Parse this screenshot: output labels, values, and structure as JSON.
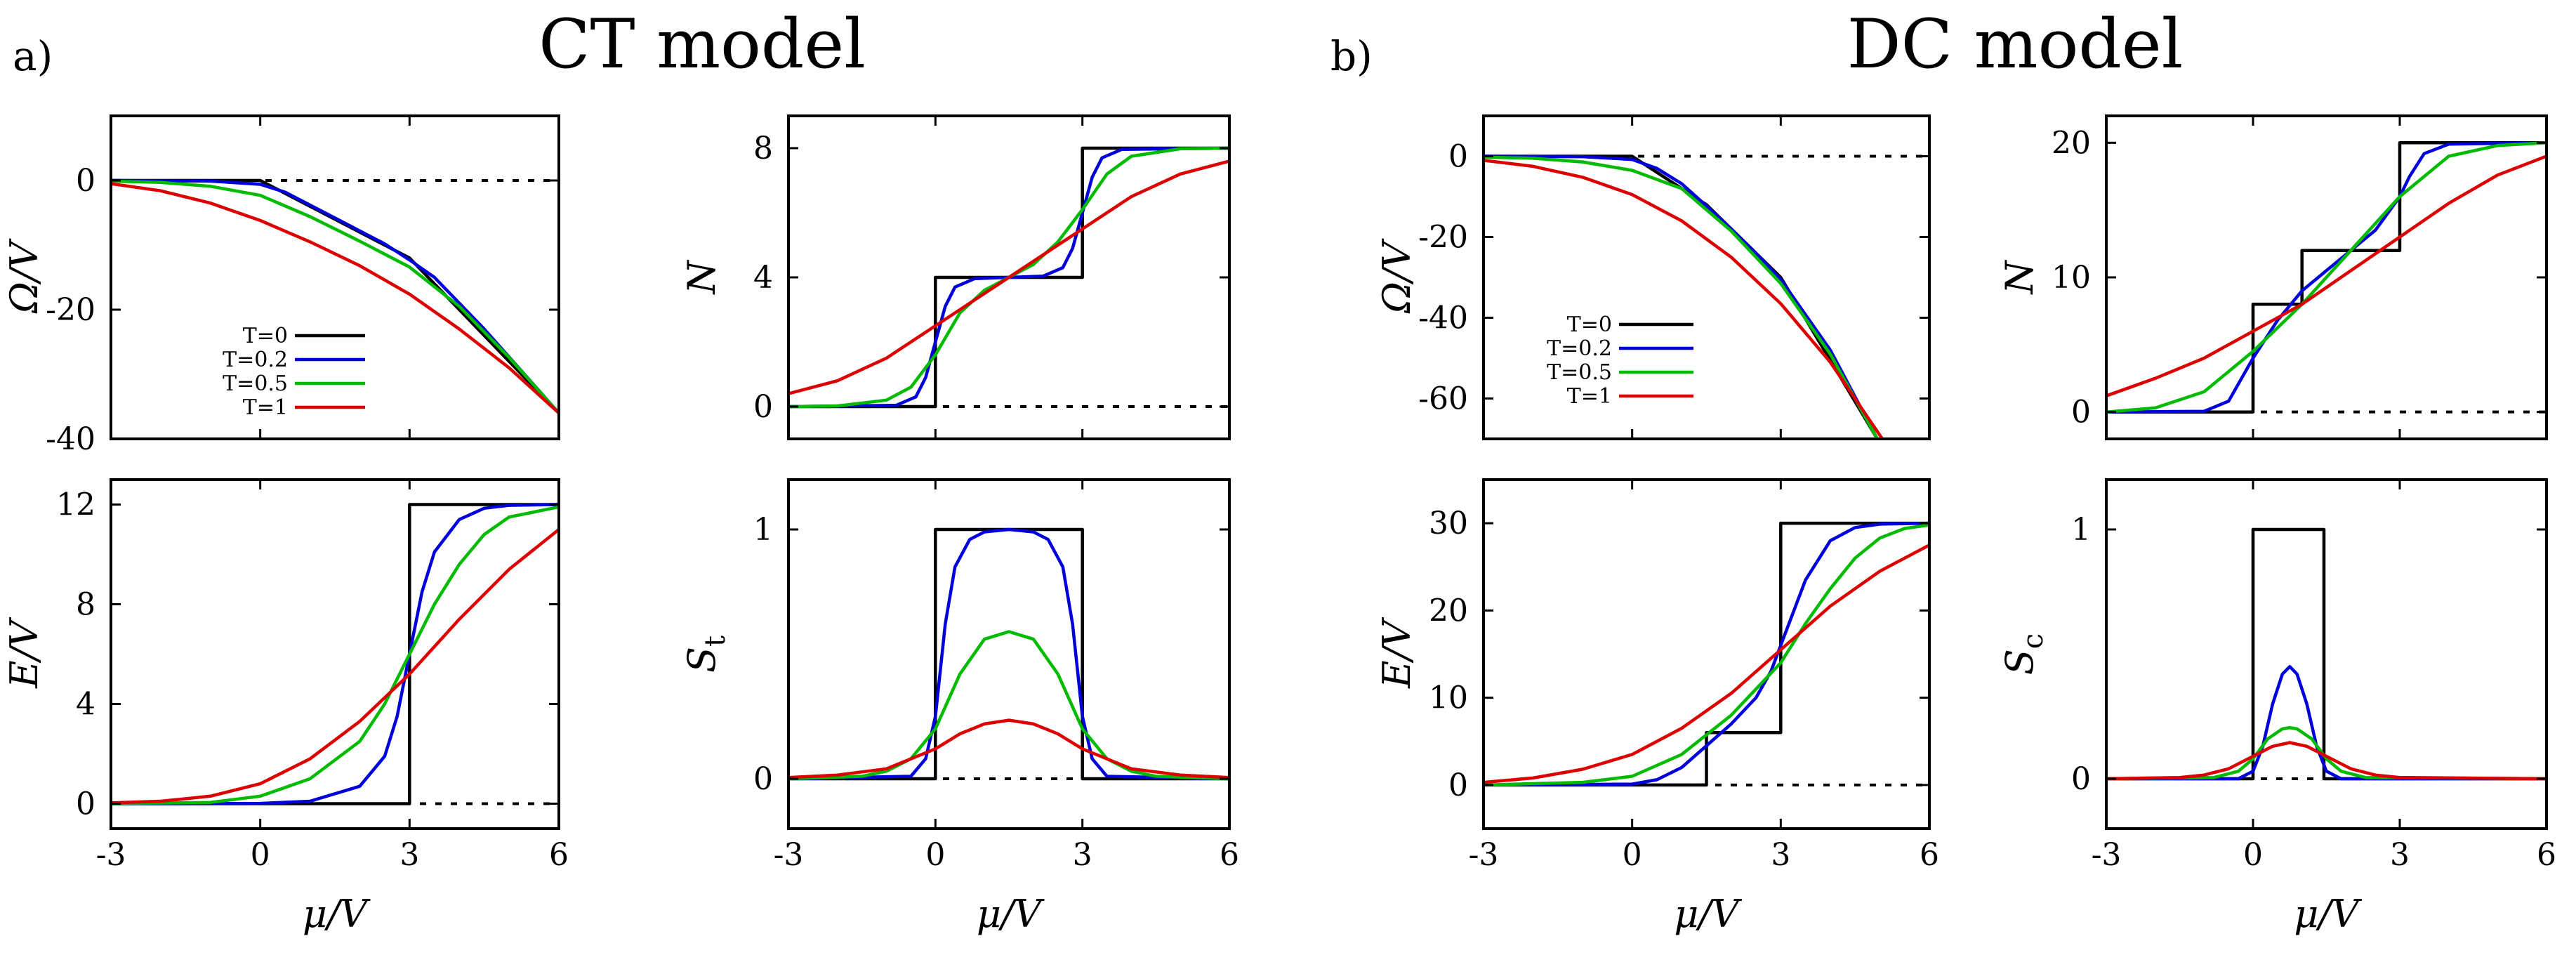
{
  "figure": {
    "left_letter": "a)",
    "right_letter": "b)",
    "left_title": "CT model",
    "right_title": "DC model"
  },
  "legend": {
    "entries": [
      {
        "label": "T=0",
        "color": "#000000"
      },
      {
        "label": "T=0.2",
        "color": "#0000dd"
      },
      {
        "label": "T=0.5",
        "color": "#00bb00"
      },
      {
        "label": "T=1",
        "color": "#dd0000"
      }
    ]
  },
  "chart_data": [
    {
      "id": "ct_omega",
      "type": "line",
      "model": "CT",
      "ylabel": "Ω/V",
      "xlabel": "",
      "xlim": [
        -3,
        6
      ],
      "ylim": [
        -40,
        10
      ],
      "yticks": [
        "0",
        "-20",
        "-40"
      ],
      "ytick_values": [
        0,
        -20,
        -40
      ],
      "xticks": [],
      "xtick_values": [
        -3,
        0,
        3,
        6
      ],
      "dashed_zero": true,
      "series": [
        {
          "name": "T=0",
          "x": [
            -3,
            0,
            3,
            6
          ],
          "y": [
            0,
            0,
            -12,
            -36
          ]
        },
        {
          "name": "T=0.2",
          "x": [
            -3,
            -1,
            0,
            0.5,
            1.5,
            2.5,
            3,
            3.5,
            4.5,
            6
          ],
          "y": [
            0,
            -0.1,
            -0.6,
            -1.8,
            -5.8,
            -9.8,
            -12.3,
            -15,
            -23,
            -36
          ]
        },
        {
          "name": "T=0.5",
          "x": [
            -3,
            -2,
            -1,
            0,
            1,
            2,
            3,
            4,
            5,
            6
          ],
          "y": [
            -0.1,
            -0.3,
            -0.9,
            -2.3,
            -5.6,
            -9.4,
            -13.4,
            -19.5,
            -27.4,
            -36
          ]
        },
        {
          "name": "T=1",
          "x": [
            -3,
            -2,
            -1,
            0,
            1,
            2,
            3,
            4,
            5,
            6
          ],
          "y": [
            -0.5,
            -1.6,
            -3.5,
            -6.2,
            -9.5,
            -13.2,
            -17.6,
            -23.0,
            -29.0,
            -36
          ]
        }
      ]
    },
    {
      "id": "ct_n",
      "type": "line",
      "model": "CT",
      "ylabel": "N",
      "xlabel": "",
      "xlim": [
        -3,
        6
      ],
      "ylim": [
        -1,
        9
      ],
      "yticks": [
        "8",
        "4",
        "0"
      ],
      "ytick_values": [
        8,
        4,
        0
      ],
      "xticks": [],
      "xtick_values": [
        -3,
        0,
        3,
        6
      ],
      "dashed_zero": true,
      "series": [
        {
          "name": "T=0",
          "x": [
            -3,
            0,
            0,
            3,
            3,
            6
          ],
          "y": [
            0,
            0,
            4,
            4,
            8,
            8
          ]
        },
        {
          "name": "T=0.2",
          "x": [
            -3,
            -0.8,
            -0.4,
            -0.2,
            0,
            0.2,
            0.4,
            0.8,
            1.5,
            2.2,
            2.6,
            2.8,
            3,
            3.2,
            3.4,
            3.8,
            6
          ],
          "y": [
            0,
            0.04,
            0.3,
            0.9,
            2,
            3.1,
            3.7,
            3.96,
            4,
            4.04,
            4.3,
            4.9,
            6,
            7.1,
            7.7,
            7.96,
            8
          ]
        },
        {
          "name": "T=0.5",
          "x": [
            -3,
            -2,
            -1,
            -0.5,
            0,
            0.5,
            1,
            1.5,
            2,
            2.5,
            3,
            3.5,
            4,
            5,
            6
          ],
          "y": [
            0,
            0.02,
            0.2,
            0.6,
            1.6,
            2.9,
            3.6,
            4,
            4.4,
            5.1,
            6.1,
            7.2,
            7.75,
            7.98,
            8
          ]
        },
        {
          "name": "T=1",
          "x": [
            -3,
            -2,
            -1,
            0,
            1,
            1.5,
            2,
            3,
            4,
            5,
            6
          ],
          "y": [
            0.4,
            0.8,
            1.5,
            2.5,
            3.5,
            4,
            4.5,
            5.5,
            6.5,
            7.2,
            7.6
          ]
        }
      ]
    },
    {
      "id": "ct_energy",
      "type": "line",
      "model": "CT",
      "ylabel": "E/V",
      "xlabel": "μ/V",
      "xlim": [
        -3,
        6
      ],
      "ylim": [
        -1,
        13
      ],
      "yticks": [
        "12",
        "8",
        "4",
        "0"
      ],
      "ytick_values": [
        12,
        8,
        4,
        0
      ],
      "xticks": [
        "-3",
        "0",
        "3",
        "6"
      ],
      "xtick_values": [
        -3,
        0,
        3,
        6
      ],
      "dashed_zero": true,
      "series": [
        {
          "name": "T=0",
          "x": [
            -3,
            3,
            3,
            6
          ],
          "y": [
            0,
            0,
            12,
            12
          ]
        },
        {
          "name": "T=0.2",
          "x": [
            -3,
            0,
            1,
            2,
            2.5,
            2.75,
            3,
            3.25,
            3.5,
            4,
            4.5,
            5,
            6
          ],
          "y": [
            0,
            0.01,
            0.1,
            0.7,
            1.9,
            3.5,
            6,
            8.5,
            10.1,
            11.4,
            11.85,
            11.97,
            12
          ]
        },
        {
          "name": "T=0.5",
          "x": [
            -3,
            -1,
            0,
            1,
            2,
            2.5,
            3,
            3.5,
            4,
            4.5,
            5,
            6
          ],
          "y": [
            0,
            0.05,
            0.3,
            1,
            2.5,
            4,
            6,
            8,
            9.6,
            10.8,
            11.5,
            11.9
          ]
        },
        {
          "name": "T=1",
          "x": [
            -3,
            -2,
            -1,
            0,
            1,
            2,
            3,
            4,
            5,
            6
          ],
          "y": [
            0.03,
            0.1,
            0.3,
            0.8,
            1.8,
            3.3,
            5.2,
            7.4,
            9.4,
            11
          ]
        }
      ]
    },
    {
      "id": "ct_entropy",
      "type": "line",
      "model": "CT",
      "ylabel": "S_t",
      "ylabel_main": "S",
      "ylabel_sub": "t",
      "xlabel": "μ/V",
      "xlim": [
        -3,
        6
      ],
      "ylim": [
        -0.2,
        1.2
      ],
      "yticks": [
        "1",
        "0"
      ],
      "ytick_values": [
        1,
        0
      ],
      "xticks": [
        "-3",
        "0",
        "3",
        "6"
      ],
      "xtick_values": [
        -3,
        0,
        3,
        6
      ],
      "dashed_zero": true,
      "series": [
        {
          "name": "T=0",
          "x": [
            -3,
            0,
            0,
            3,
            3,
            6
          ],
          "y": [
            0,
            0,
            1,
            1,
            0,
            0
          ]
        },
        {
          "name": "T=0.2",
          "x": [
            -3,
            -0.5,
            -0.2,
            0,
            0.2,
            0.4,
            0.7,
            1,
            1.5,
            2,
            2.3,
            2.6,
            2.8,
            3,
            3.2,
            3.5,
            6
          ],
          "y": [
            0,
            0.01,
            0.08,
            0.25,
            0.62,
            0.85,
            0.96,
            0.99,
            1,
            0.99,
            0.96,
            0.85,
            0.62,
            0.25,
            0.08,
            0.01,
            0
          ]
        },
        {
          "name": "T=0.5",
          "x": [
            -3,
            -1.5,
            -1,
            -0.5,
            0,
            0.5,
            1,
            1.5,
            2,
            2.5,
            3,
            3.5,
            4,
            4.5,
            6
          ],
          "y": [
            0,
            0.01,
            0.03,
            0.08,
            0.2,
            0.42,
            0.56,
            0.59,
            0.56,
            0.42,
            0.2,
            0.08,
            0.03,
            0.01,
            0
          ]
        },
        {
          "name": "T=1",
          "x": [
            -3,
            -2,
            -1,
            0,
            0.5,
            1,
            1.5,
            2,
            2.5,
            3,
            4,
            5,
            6
          ],
          "y": [
            0.005,
            0.015,
            0.04,
            0.12,
            0.18,
            0.22,
            0.235,
            0.22,
            0.18,
            0.12,
            0.04,
            0.015,
            0.005
          ]
        }
      ]
    },
    {
      "id": "dc_omega",
      "type": "line",
      "model": "DC",
      "ylabel": "Ω/V",
      "xlabel": "",
      "xlim": [
        -3,
        6
      ],
      "ylim": [
        -70,
        10
      ],
      "yticks": [
        "0",
        "-20",
        "-40",
        "-60"
      ],
      "ytick_values": [
        0,
        -20,
        -40,
        -60
      ],
      "xticks": [],
      "xtick_values": [
        -3,
        0,
        3,
        6
      ],
      "dashed_zero": true,
      "series": [
        {
          "name": "T=0",
          "x": [
            -3,
            0,
            1.5,
            3,
            4.95
          ],
          "y": [
            0,
            0,
            -12,
            -30,
            -70
          ]
        },
        {
          "name": "T=0.2",
          "x": [
            -3,
            -1,
            0,
            0.5,
            1,
            1.5,
            2,
            2.5,
            3,
            4,
            4.95
          ],
          "y": [
            0,
            -0.1,
            -0.8,
            -3,
            -6.8,
            -12.3,
            -18,
            -24,
            -30.5,
            -48,
            -70
          ]
        },
        {
          "name": "T=0.5",
          "x": [
            -3,
            -2,
            -1,
            0,
            1,
            2,
            3,
            4,
            4.95
          ],
          "y": [
            -0.2,
            -0.5,
            -1.4,
            -3.5,
            -8,
            -18.5,
            -31.5,
            -49,
            -70
          ]
        },
        {
          "name": "T=1",
          "x": [
            -3,
            -2,
            -1,
            0,
            1,
            2,
            3,
            4,
            5.05
          ],
          "y": [
            -1,
            -2.5,
            -5.2,
            -9.5,
            -16,
            -25,
            -36.5,
            -51,
            -70
          ]
        }
      ]
    },
    {
      "id": "dc_n",
      "type": "line",
      "model": "DC",
      "ylabel": "N",
      "xlabel": "",
      "xlim": [
        -3,
        6
      ],
      "ylim": [
        -2,
        22
      ],
      "yticks": [
        "20",
        "10",
        "0"
      ],
      "ytick_values": [
        20,
        10,
        0
      ],
      "xticks": [],
      "xtick_values": [
        -3,
        0,
        3,
        6
      ],
      "dashed_zero": true,
      "series": [
        {
          "name": "T=0",
          "x": [
            -3,
            0,
            0,
            1,
            1,
            2,
            2,
            3,
            3,
            6
          ],
          "y": [
            0,
            0,
            8,
            8,
            12,
            12,
            12,
            12,
            20,
            20
          ]
        },
        {
          "name": "T=0.2",
          "x": [
            -3,
            -1,
            -0.5,
            0,
            0.5,
            1,
            1.5,
            2,
            2.5,
            2.8,
            3,
            3.2,
            3.5,
            4,
            6
          ],
          "y": [
            0,
            0.05,
            0.8,
            4,
            6.8,
            9,
            10.5,
            12,
            13.5,
            15,
            16,
            17.5,
            19.2,
            19.9,
            20
          ]
        },
        {
          "name": "T=0.5",
          "x": [
            -3,
            -2,
            -1,
            0,
            1,
            2,
            3,
            4,
            5,
            6
          ],
          "y": [
            0,
            0.3,
            1.5,
            4.5,
            8,
            12,
            16,
            19,
            19.8,
            20
          ]
        },
        {
          "name": "T=1",
          "x": [
            -3,
            -2,
            -1,
            0,
            1,
            2,
            3,
            4,
            5,
            6
          ],
          "y": [
            1.2,
            2.5,
            4,
            6,
            8,
            10.5,
            13,
            15.5,
            17.6,
            19
          ]
        }
      ]
    },
    {
      "id": "dc_energy",
      "type": "line",
      "model": "DC",
      "ylabel": "E/V",
      "xlabel": "μ/V",
      "xlim": [
        -3,
        6
      ],
      "ylim": [
        -5,
        35
      ],
      "yticks": [
        "30",
        "20",
        "10",
        "0"
      ],
      "ytick_values": [
        30,
        20,
        10,
        0
      ],
      "xticks": [
        "-3",
        "0",
        "3",
        "6"
      ],
      "xtick_values": [
        -3,
        0,
        3,
        6
      ],
      "dashed_zero": true,
      "series": [
        {
          "name": "T=0",
          "x": [
            -3,
            1.5,
            1.5,
            3,
            3,
            6
          ],
          "y": [
            0,
            0,
            6,
            6,
            30,
            30
          ]
        },
        {
          "name": "T=0.2",
          "x": [
            -3,
            0,
            0.5,
            1,
            1.5,
            2,
            2.5,
            2.8,
            3,
            3.2,
            3.5,
            4,
            4.5,
            5,
            6
          ],
          "y": [
            0,
            0.1,
            0.6,
            2,
            4.5,
            7,
            10,
            13,
            16,
            19,
            23.5,
            28,
            29.5,
            29.9,
            30
          ]
        },
        {
          "name": "T=0.5",
          "x": [
            -3,
            -1,
            0,
            1,
            2,
            3,
            3.5,
            4,
            4.5,
            5,
            5.5,
            6
          ],
          "y": [
            0,
            0.3,
            1,
            3.5,
            8,
            14,
            18.5,
            22.5,
            26,
            28.3,
            29.4,
            29.8
          ]
        },
        {
          "name": "T=1",
          "x": [
            -3,
            -2,
            -1,
            0,
            1,
            2,
            3,
            4,
            5,
            6
          ],
          "y": [
            0.3,
            0.8,
            1.8,
            3.5,
            6.5,
            10.5,
            15.5,
            20.5,
            24.5,
            27.5
          ]
        }
      ]
    },
    {
      "id": "dc_entropy",
      "type": "line",
      "model": "DC",
      "ylabel": "S_c",
      "ylabel_main": "S",
      "ylabel_sub": "c",
      "xlabel": "μ/V",
      "xlim": [
        -3,
        6
      ],
      "ylim": [
        -0.2,
        1.2
      ],
      "yticks": [
        "1",
        "0"
      ],
      "ytick_values": [
        1,
        0
      ],
      "xticks": [
        "-3",
        "0",
        "3",
        "6"
      ],
      "xtick_values": [
        -3,
        0,
        3,
        6
      ],
      "dashed_zero": true,
      "series": [
        {
          "name": "T=0",
          "x": [
            -3,
            0,
            0,
            1.45,
            1.45,
            6
          ],
          "y": [
            0,
            0,
            1,
            1,
            0,
            0
          ]
        },
        {
          "name": "T=0.2",
          "x": [
            -3,
            -0.3,
            0,
            0.2,
            0.4,
            0.6,
            0.75,
            0.9,
            1.1,
            1.3,
            1.5,
            1.8,
            6
          ],
          "y": [
            0,
            0,
            0.03,
            0.13,
            0.3,
            0.42,
            0.45,
            0.42,
            0.3,
            0.13,
            0.03,
            0,
            0
          ]
        },
        {
          "name": "T=0.5",
          "x": [
            -3,
            -0.8,
            -0.3,
            0,
            0.3,
            0.6,
            0.75,
            0.9,
            1.2,
            1.5,
            1.8,
            2.3,
            6
          ],
          "y": [
            0,
            0.005,
            0.03,
            0.08,
            0.16,
            0.2,
            0.205,
            0.2,
            0.16,
            0.08,
            0.03,
            0.005,
            0
          ]
        },
        {
          "name": "T=1",
          "x": [
            -3,
            -1.5,
            -1,
            -0.5,
            0,
            0.4,
            0.75,
            1.1,
            1.5,
            2,
            2.5,
            3,
            6
          ],
          "y": [
            0,
            0.005,
            0.015,
            0.04,
            0.09,
            0.13,
            0.145,
            0.13,
            0.09,
            0.04,
            0.015,
            0.005,
            0
          ]
        }
      ]
    }
  ]
}
